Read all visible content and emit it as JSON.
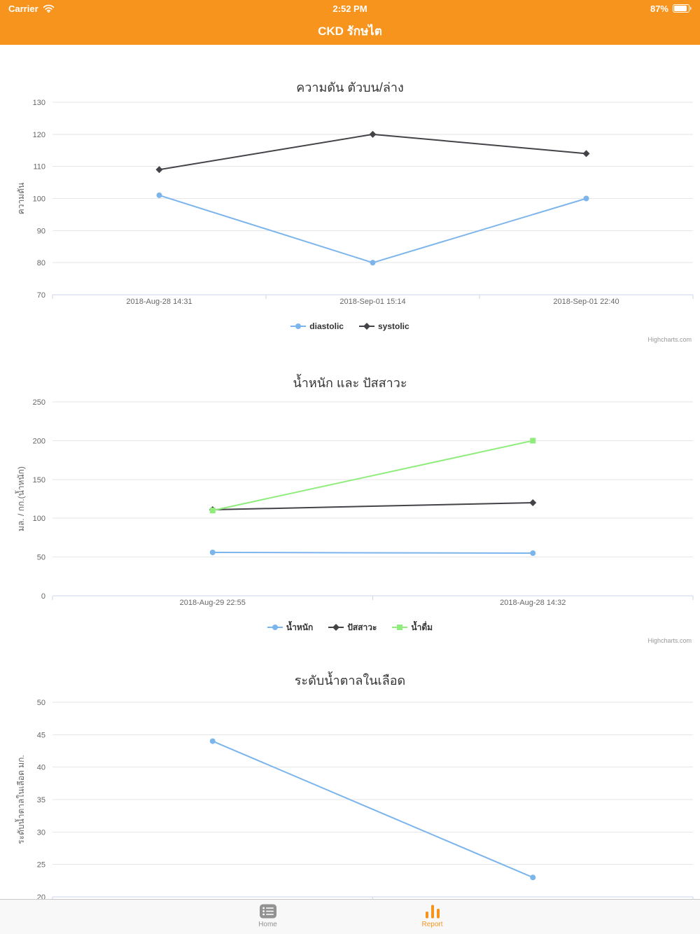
{
  "status_bar": {
    "carrier": "Carrier",
    "time": "2:52 PM",
    "battery_percent": "87%"
  },
  "nav_bar": {
    "title": "CKD รักษไต"
  },
  "colors": {
    "header": "#F7941E",
    "series_blue": "#7CB5EC",
    "series_black": "#434348",
    "series_green": "#90ED7D",
    "tab_active": "#F7941E",
    "tab_inactive": "#929292"
  },
  "credits_label": "Highcharts.com",
  "chart_data": [
    {
      "type": "line",
      "title": "ความดัน ตัวบน/ล่าง",
      "ylabel": "ความดัน",
      "ylim": [
        70,
        130
      ],
      "ytick_step": 10,
      "grid": true,
      "legend_position": "bottom",
      "show_x_labels": true,
      "categories": [
        "2018-Aug-28 14:31",
        "2018-Sep-01 15:14",
        "2018-Sep-01 22:40"
      ],
      "series": [
        {
          "name": "diastolic",
          "color": "#7CB5EC",
          "marker": "circle",
          "values": [
            101,
            80,
            100
          ]
        },
        {
          "name": "systolic",
          "color": "#434348",
          "marker": "diamond",
          "values": [
            109,
            120,
            114
          ]
        }
      ]
    },
    {
      "type": "line",
      "title": "น้ำหนัก และ ปัสสาวะ",
      "ylabel": "มล. / กก.(น้ำหนัก)",
      "ylim": [
        0,
        250
      ],
      "ytick_step": 50,
      "grid": true,
      "legend_position": "bottom",
      "show_x_labels": true,
      "categories": [
        "2018-Aug-29 22:55",
        "2018-Aug-28 14:32"
      ],
      "series": [
        {
          "name": "น้ำหนัก",
          "color": "#7CB5EC",
          "marker": "circle",
          "values": [
            56,
            55
          ]
        },
        {
          "name": "ปัสสาวะ",
          "color": "#434348",
          "marker": "diamond",
          "values": [
            111,
            120
          ]
        },
        {
          "name": "น้ำดื่ม",
          "color": "#90ED7D",
          "marker": "square",
          "values": [
            110,
            200
          ]
        }
      ]
    },
    {
      "type": "line",
      "title": "ระดับน้ำตาลในเลือด",
      "ylabel": "ระดับน้ำตาลในเลือด มก.",
      "ylim": [
        20,
        50
      ],
      "ytick_step": 5,
      "grid": true,
      "legend_position": "none",
      "show_x_labels": false,
      "categories": [
        "",
        ""
      ],
      "series": [
        {
          "name": "blood-sugar",
          "color": "#7CB5EC",
          "marker": "circle",
          "values": [
            44,
            23
          ]
        }
      ]
    }
  ],
  "tab_bar": {
    "items": [
      {
        "label": "Home",
        "icon": "list-icon",
        "active": false
      },
      {
        "label": "Report",
        "icon": "bar-chart-icon",
        "active": true
      }
    ]
  }
}
